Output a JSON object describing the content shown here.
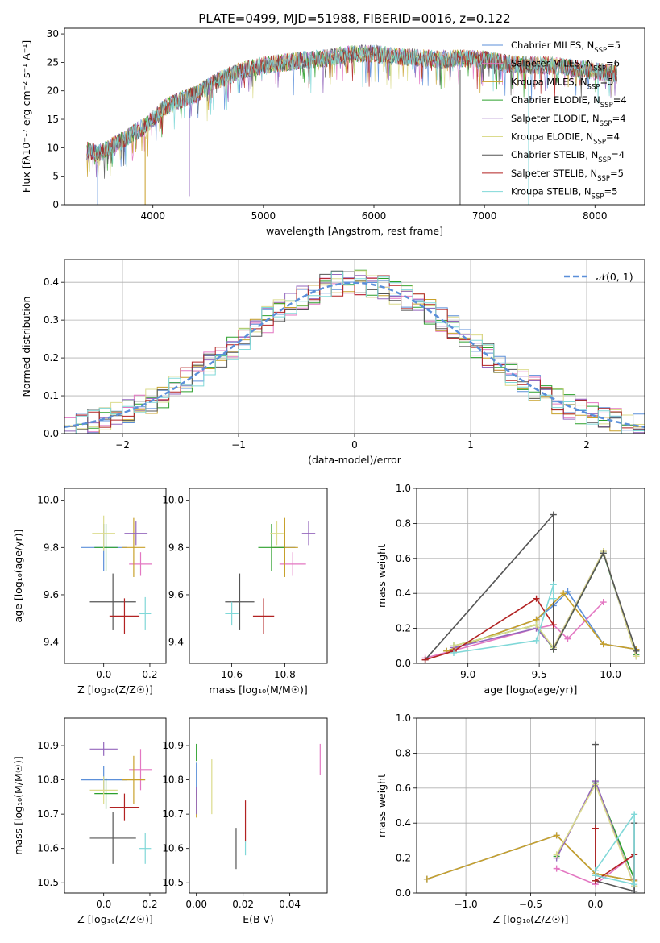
{
  "figure_title": "PLATE=0499, MJD=51988, FIBERID=0016, z=0.122",
  "colors": {
    "Chabrier MILES": "#5b8fd9",
    "Salpeter MILES": "#e377c2",
    "Kroupa MILES": "#c8a02a",
    "Chabrier ELODIE": "#2ca02c",
    "Salpeter ELODIE": "#9467bd",
    "Kroupa ELODIE": "#dbdb8d",
    "Chabrier STELIB": "#555555",
    "Salpeter STELIB": "#b22222",
    "Kroupa STELIB": "#80d8d8"
  },
  "chart_data": [
    {
      "id": "spectrum",
      "type": "line",
      "title": "PLATE=0499, MJD=51988, FIBERID=0016, z=0.122",
      "xlabel": "wavelength [Angstrom, rest frame]",
      "ylabel": "Flux [fλ10⁻¹⁷ erg cm⁻² s⁻¹ A⁻¹]",
      "xlim": [
        3200,
        8450
      ],
      "ylim": [
        0,
        31
      ],
      "xticks": [
        4000,
        5000,
        6000,
        7000,
        8000
      ],
      "yticks": [
        0,
        5,
        10,
        15,
        20,
        25,
        30
      ],
      "legend_position": "top-right",
      "series": [
        {
          "name": "Chabrier MILES, N_SSP=5"
        },
        {
          "name": "Salpeter MILES, N_SSP=6"
        },
        {
          "name": "Kroupa MILES, N_SSP=5"
        },
        {
          "name": "Chabrier ELODIE, N_SSP=4"
        },
        {
          "name": "Salpeter ELODIE, N_SSP=4"
        },
        {
          "name": "Kroupa ELODIE, N_SSP=4"
        },
        {
          "name": "Chabrier STELIB, N_SSP=4"
        },
        {
          "name": "Salpeter STELIB, N_SSP=5"
        },
        {
          "name": "Kroupa STELIB, N_SSP=5"
        }
      ],
      "continuum": {
        "x": [
          3400,
          3500,
          3700,
          3900,
          4000,
          4100,
          4200,
          4400,
          4600,
          4800,
          5000,
          5200,
          5400,
          5600,
          5800,
          6000,
          6200,
          6400,
          6600,
          6800,
          7000,
          7200,
          7400,
          7600,
          7800,
          8000,
          8200
        ],
        "y": [
          9.5,
          9,
          11,
          13.5,
          15,
          17,
          18,
          19.5,
          22,
          23.5,
          24.5,
          25,
          25.5,
          25.8,
          26.5,
          26.5,
          26,
          25.8,
          25.5,
          25.7,
          25.5,
          24.8,
          24.5,
          24.5,
          24,
          23.5,
          23
        ]
      },
      "dips": [
        {
          "x": 3500,
          "y": 0
        },
        {
          "x": 3930,
          "y": 0
        },
        {
          "x": 4330,
          "y": 1.5
        },
        {
          "x": 6780,
          "y": 0
        },
        {
          "x": 7400,
          "y": 0
        }
      ]
    },
    {
      "id": "residuals",
      "type": "line",
      "xlabel": "(data-model)/error",
      "ylabel": "Normed distribution",
      "xlim": [
        -2.5,
        2.5
      ],
      "ylim": [
        0,
        0.46
      ],
      "xticks": [
        -2,
        -1,
        0,
        1,
        2
      ],
      "yticks": [
        0.0,
        0.1,
        0.2,
        0.3,
        0.4
      ],
      "grid": true,
      "legend_position": "top-right",
      "reference": {
        "name": "𝒩(0, 1)",
        "mean": 0,
        "sigma": 1
      }
    },
    {
      "id": "age_vs_Z",
      "type": "scatter",
      "xlabel": "Z [log₁₀(Z/Z☉)]",
      "ylabel": "age [log₁₀(age/yr)]",
      "xlim": [
        -0.17,
        0.27
      ],
      "ylim": [
        9.31,
        10.05
      ],
      "xticks": [
        0.0,
        0.2
      ],
      "yticks": [
        9.4,
        9.6,
        9.8,
        10.0
      ],
      "points": [
        {
          "x": 0.0,
          "y": 9.8,
          "xerr": 0.2,
          "yerr": 0.2
        },
        {
          "x": 0.16,
          "y": 9.73,
          "xerr": 0.1,
          "yerr": 0.1
        },
        {
          "x": 0.13,
          "y": 9.8,
          "xerr": 0.1,
          "yerr": 0.25
        },
        {
          "x": 0.01,
          "y": 9.8,
          "xerr": 0.1,
          "yerr": 0.2
        },
        {
          "x": 0.14,
          "y": 9.86,
          "xerr": 0.1,
          "yerr": 0.1
        },
        {
          "x": 0.0,
          "y": 9.86,
          "xerr": 0.1,
          "yerr": 0.15
        },
        {
          "x": 0.04,
          "y": 9.57,
          "xerr": 0.2,
          "yerr": 0.24
        },
        {
          "x": 0.09,
          "y": 9.51,
          "xerr": 0.13,
          "yerr": 0.15
        },
        {
          "x": 0.18,
          "y": 9.52,
          "xerr": 0.05,
          "yerr": 0.14
        }
      ]
    },
    {
      "id": "age_vs_mass",
      "type": "scatter",
      "xlabel": "mass [log₁₀(M/M☉)]",
      "ylim": [
        9.31,
        10.05
      ],
      "xlim": [
        10.44,
        10.96
      ],
      "xticks": [
        10.6,
        10.8
      ],
      "yticks": [
        9.4,
        9.6,
        9.8,
        10.0
      ],
      "points": [
        {
          "x": 10.8,
          "y": 9.8,
          "xerr": 0.08,
          "yerr": 0.2
        },
        {
          "x": 10.83,
          "y": 9.73,
          "xerr": 0.1,
          "yerr": 0.1
        },
        {
          "x": 10.8,
          "y": 9.8,
          "xerr": 0.1,
          "yerr": 0.25
        },
        {
          "x": 10.75,
          "y": 9.8,
          "xerr": 0.1,
          "yerr": 0.2
        },
        {
          "x": 10.89,
          "y": 9.86,
          "xerr": 0.05,
          "yerr": 0.1
        },
        {
          "x": 10.77,
          "y": 9.86,
          "xerr": 0.05,
          "yerr": 0.1
        },
        {
          "x": 10.63,
          "y": 9.57,
          "xerr": 0.11,
          "yerr": 0.24
        },
        {
          "x": 10.72,
          "y": 9.51,
          "xerr": 0.08,
          "yerr": 0.15
        },
        {
          "x": 10.6,
          "y": 9.52,
          "xerr": 0.05,
          "yerr": 0.1
        }
      ]
    },
    {
      "id": "weight_vs_age",
      "type": "line",
      "xlabel": "age [log₁₀(age/yr)]",
      "ylabel": "mass weight",
      "xlim": [
        8.64,
        10.24
      ],
      "ylim": [
        0,
        1
      ],
      "xticks": [
        9.0,
        9.5,
        10.0
      ],
      "yticks": [
        0.0,
        0.2,
        0.4,
        0.6,
        0.8,
        1.0
      ],
      "grid": true,
      "series": [
        {
          "x": [
            8.85,
            9.48,
            9.6,
            9.7,
            9.95,
            10.18
          ],
          "y": [
            0.07,
            0.25,
            0.33,
            0.41,
            0.11,
            0.08
          ]
        },
        {
          "x": [
            8.7,
            9.48,
            9.6,
            9.7,
            9.95
          ],
          "y": [
            0.03,
            0.2,
            0.22,
            0.14,
            0.35
          ]
        },
        {
          "x": [
            8.85,
            9.48,
            9.67,
            9.95,
            10.18
          ],
          "y": [
            0.07,
            0.25,
            0.4,
            0.11,
            0.08
          ]
        },
        {
          "x": [
            8.9,
            9.48,
            9.6,
            9.95,
            10.18
          ],
          "y": [
            0.1,
            0.22,
            0.08,
            0.63,
            0.05
          ]
        },
        {
          "x": [
            8.9,
            9.48,
            9.6,
            9.95,
            10.18
          ],
          "y": [
            0.09,
            0.2,
            0.09,
            0.64,
            0.04
          ]
        },
        {
          "x": [
            8.9,
            9.48,
            9.6,
            9.95,
            10.18
          ],
          "y": [
            0.1,
            0.22,
            0.09,
            0.64,
            0.04
          ]
        },
        {
          "x": [
            8.7,
            9.6,
            9.6,
            9.95,
            10.18
          ],
          "y": [
            0.02,
            0.85,
            0.08,
            0.63,
            0.07
          ]
        },
        {
          "x": [
            8.7,
            8.9,
            9.48,
            9.6
          ],
          "y": [
            0.02,
            0.07,
            0.37,
            0.22
          ]
        },
        {
          "x": [
            8.9,
            9.48,
            9.6,
            9.6
          ],
          "y": [
            0.06,
            0.13,
            0.45,
            0.37
          ]
        }
      ]
    },
    {
      "id": "mass_vs_Z",
      "type": "scatter",
      "xlabel": "Z [log₁₀(Z/Z☉)]",
      "ylabel": "mass [log₁₀(M/M☉)]",
      "xlim": [
        -0.17,
        0.27
      ],
      "ylim": [
        10.47,
        10.98
      ],
      "xticks": [
        0.0,
        0.2
      ],
      "yticks": [
        10.5,
        10.6,
        10.7,
        10.8,
        10.9
      ],
      "points": [
        {
          "x": 0.0,
          "y": 10.8,
          "xerr": 0.2,
          "yerr": 0.08
        },
        {
          "x": 0.16,
          "y": 10.83,
          "xerr": 0.1,
          "yerr": 0.12
        },
        {
          "x": 0.13,
          "y": 10.8,
          "xerr": 0.1,
          "yerr": 0.14
        },
        {
          "x": 0.01,
          "y": 10.76,
          "xerr": 0.1,
          "yerr": 0.09
        },
        {
          "x": 0.0,
          "y": 10.89,
          "xerr": 0.12,
          "yerr": 0.04
        },
        {
          "x": 0.0,
          "y": 10.77,
          "xerr": 0.12,
          "yerr": 0.08
        },
        {
          "x": 0.04,
          "y": 10.63,
          "xerr": 0.2,
          "yerr": 0.15
        },
        {
          "x": 0.09,
          "y": 10.72,
          "xerr": 0.13,
          "yerr": 0.08
        },
        {
          "x": 0.18,
          "y": 10.6,
          "xerr": 0.05,
          "yerr": 0.09
        }
      ]
    },
    {
      "id": "mass_vs_ebv",
      "type": "scatter",
      "xlabel": "E(B-V)",
      "xlim": [
        -0.003,
        0.056
      ],
      "ylim": [
        10.47,
        10.98
      ],
      "xticks": [
        0.0,
        0.02,
        0.04
      ],
      "yticks": [
        10.5,
        10.6,
        10.7,
        10.8,
        10.9
      ],
      "points": [
        {
          "x": 0.0,
          "y": 10.8,
          "yerr": 0.1
        },
        {
          "x": 0.053,
          "y": 10.86,
          "yerr": 0.09
        },
        {
          "x": 0.0,
          "y": 10.73,
          "yerr": 0.08
        },
        {
          "x": 0.0,
          "y": 10.88,
          "yerr": 0.05
        },
        {
          "x": 0.0,
          "y": 10.74,
          "yerr": 0.08
        },
        {
          "x": 0.0066,
          "y": 10.78,
          "yerr": 0.16
        },
        {
          "x": 0.017,
          "y": 10.6,
          "yerr": 0.12
        },
        {
          "x": 0.021,
          "y": 10.68,
          "yerr": 0.12
        },
        {
          "x": 0.021,
          "y": 10.6,
          "yerr": 0.04
        }
      ]
    },
    {
      "id": "weight_vs_Z",
      "type": "line",
      "xlabel": "Z [log₁₀(Z/Z☉)]",
      "ylabel": "mass weight",
      "xlim": [
        -1.38,
        0.38
      ],
      "ylim": [
        0,
        1
      ],
      "xticks": [
        -1.0,
        -0.5,
        0.0
      ],
      "yticks": [
        0.0,
        0.2,
        0.4,
        0.6,
        0.8,
        1.0
      ],
      "grid": true,
      "series": [
        {
          "x": [
            -1.3,
            -0.3,
            0.0,
            0.3,
            0.3
          ],
          "y": [
            0.08,
            0.33,
            0.11,
            0.07,
            0.01
          ]
        },
        {
          "x": [
            -0.3,
            0.0,
            0.3,
            0.3
          ],
          "y": [
            0.14,
            0.05,
            0.22,
            0.08
          ]
        },
        {
          "x": [
            -1.3,
            -0.3,
            0.0,
            0.3
          ],
          "y": [
            0.08,
            0.33,
            0.11,
            0.07
          ]
        },
        {
          "x": [
            -0.3,
            0.0,
            0.3
          ],
          "y": [
            0.21,
            0.63,
            0.08
          ]
        },
        {
          "x": [
            -0.3,
            0.0,
            0.3
          ],
          "y": [
            0.2,
            0.64,
            0.04
          ]
        },
        {
          "x": [
            -0.3,
            0.0,
            0.3
          ],
          "y": [
            0.22,
            0.62,
            0.04
          ]
        },
        {
          "x": [
            0.0,
            0.0,
            0.3,
            0.3
          ],
          "y": [
            0.85,
            0.07,
            0.01,
            0.4
          ]
        },
        {
          "x": [
            0.0,
            0.0,
            0.3,
            0.3
          ],
          "y": [
            0.37,
            0.07,
            0.22,
            0.08
          ]
        },
        {
          "x": [
            0.0,
            0.3,
            0.3,
            0.0
          ],
          "y": [
            0.13,
            0.45,
            0.05,
            0.1
          ]
        }
      ]
    }
  ]
}
